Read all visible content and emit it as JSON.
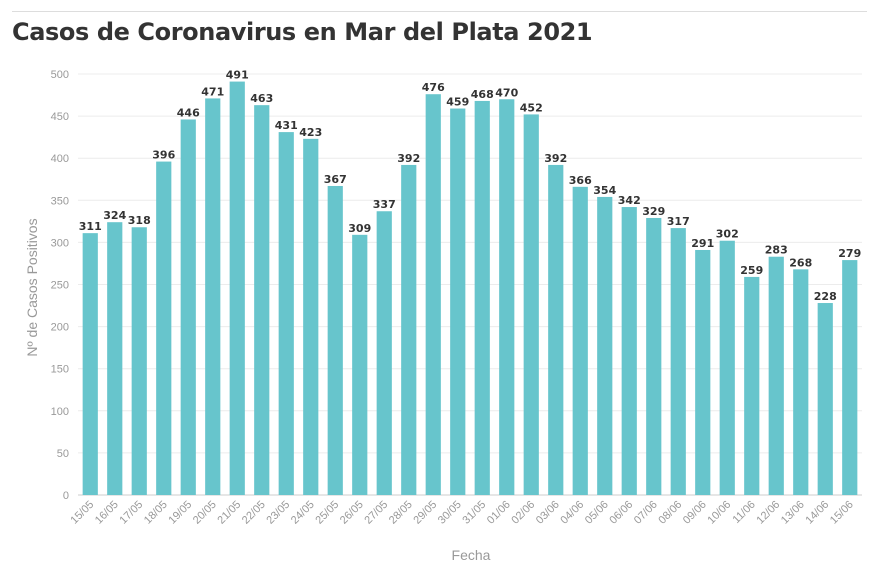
{
  "title": "Casos de Coronavirus en Mar del Plata 2021",
  "chart_data": {
    "type": "bar",
    "title": "Casos de Coronavirus en Mar del Plata 2021",
    "xlabel": "Fecha",
    "ylabel": "Nº de Casos Positivos",
    "ylim": [
      0,
      500
    ],
    "yticks": [
      0,
      50,
      100,
      150,
      200,
      250,
      300,
      350,
      400,
      450,
      500
    ],
    "grid": true,
    "bar_color": "#67c5cc",
    "categories": [
      "15/05",
      "16/05",
      "17/05",
      "18/05",
      "19/05",
      "20/05",
      "21/05",
      "22/05",
      "23/05",
      "24/05",
      "25/05",
      "26/05",
      "27/05",
      "28/05",
      "29/05",
      "30/05",
      "31/05",
      "01/06",
      "02/06",
      "03/06",
      "04/06",
      "05/06",
      "06/06",
      "07/06",
      "08/06",
      "09/06",
      "10/06",
      "11/06",
      "12/06",
      "13/06",
      "14/06",
      "15/06"
    ],
    "values": [
      311,
      324,
      318,
      396,
      446,
      471,
      491,
      463,
      431,
      423,
      367,
      309,
      337,
      392,
      476,
      459,
      468,
      470,
      452,
      392,
      366,
      354,
      342,
      329,
      317,
      291,
      302,
      259,
      283,
      268,
      228,
      279
    ]
  }
}
